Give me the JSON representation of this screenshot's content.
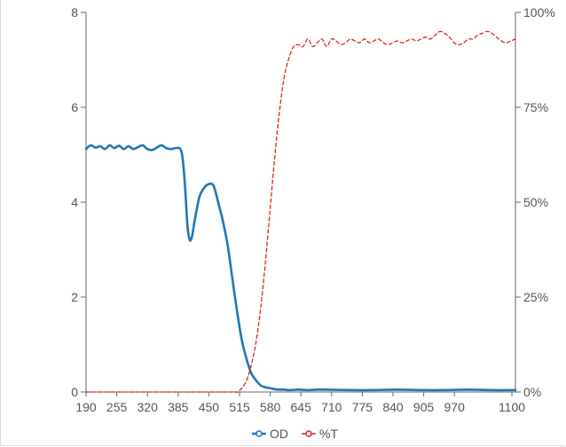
{
  "chart_data": {
    "type": "line",
    "title": "",
    "xlabel": "",
    "ylabel_left": "",
    "ylabel_right": "",
    "x_ticks": [
      "190",
      "255",
      "320",
      "385",
      "450",
      "515",
      "580",
      "645",
      "710",
      "775",
      "840",
      "905",
      "970",
      "1100"
    ],
    "xlim": [
      190,
      1100
    ],
    "y_left_ticks": [
      "0",
      "2",
      "4",
      "6",
      "8"
    ],
    "y_left_lim": [
      0,
      8
    ],
    "y_right_ticks": [
      "0%",
      "25%",
      "50%",
      "75%",
      "100%"
    ],
    "y_right_lim": [
      0,
      100
    ],
    "grid": false,
    "legend_position": "bottom-center",
    "series": [
      {
        "name": "OD",
        "axis": "left",
        "color": "#1f77b4",
        "style": "solid",
        "x": [
          190,
          200,
          210,
          220,
          230,
          240,
          250,
          260,
          270,
          280,
          290,
          300,
          310,
          320,
          330,
          340,
          350,
          360,
          370,
          380,
          390,
          395,
          400,
          405,
          410,
          415,
          420,
          430,
          440,
          450,
          460,
          470,
          480,
          490,
          500,
          510,
          520,
          530,
          540,
          550,
          560,
          570,
          580,
          590,
          600,
          610,
          620,
          640,
          660,
          680,
          700,
          750,
          800,
          850,
          900,
          950,
          1000,
          1050,
          1100
        ],
        "values": [
          5.12,
          5.2,
          5.15,
          5.18,
          5.12,
          5.2,
          5.14,
          5.19,
          5.12,
          5.18,
          5.12,
          5.16,
          5.2,
          5.12,
          5.1,
          5.15,
          5.2,
          5.14,
          5.12,
          5.14,
          5.12,
          4.9,
          4.3,
          3.5,
          3.2,
          3.3,
          3.6,
          4.1,
          4.3,
          4.38,
          4.35,
          4.0,
          3.6,
          3.1,
          2.4,
          1.7,
          1.1,
          0.7,
          0.4,
          0.25,
          0.14,
          0.1,
          0.08,
          0.06,
          0.05,
          0.05,
          0.04,
          0.05,
          0.04,
          0.05,
          0.05,
          0.04,
          0.04,
          0.05,
          0.04,
          0.04,
          0.05,
          0.04,
          0.04
        ]
      },
      {
        "name": "%T",
        "axis": "right",
        "color": "#d62728",
        "style": "dashed",
        "x": [
          190,
          300,
          400,
          500,
          510,
          520,
          530,
          540,
          550,
          560,
          570,
          580,
          590,
          600,
          610,
          620,
          630,
          640,
          650,
          660,
          670,
          680,
          690,
          700,
          710,
          720,
          730,
          740,
          750,
          760,
          770,
          780,
          790,
          800,
          810,
          820,
          830,
          840,
          850,
          860,
          870,
          880,
          890,
          900,
          910,
          920,
          930,
          940,
          950,
          960,
          970,
          980,
          990,
          1000,
          1010,
          1020,
          1030,
          1040,
          1050,
          1060,
          1070,
          1080,
          1090,
          1100
        ],
        "values": [
          0,
          0,
          0,
          0,
          0,
          1,
          3,
          7,
          13,
          22,
          34,
          48,
          62,
          74,
          83,
          88,
          91,
          91.5,
          91,
          93,
          91,
          92,
          93,
          91,
          93,
          92.5,
          91.5,
          92,
          93,
          92.5,
          92,
          93,
          92,
          92.5,
          93,
          92,
          91.5,
          92,
          92.5,
          92,
          92.5,
          93,
          92.5,
          93,
          93.5,
          93,
          94,
          95,
          94.5,
          93.5,
          92,
          91.5,
          92,
          93,
          93,
          94,
          94.5,
          95,
          94.5,
          93.5,
          92.5,
          92,
          92.5,
          93
        ]
      }
    ]
  }
}
